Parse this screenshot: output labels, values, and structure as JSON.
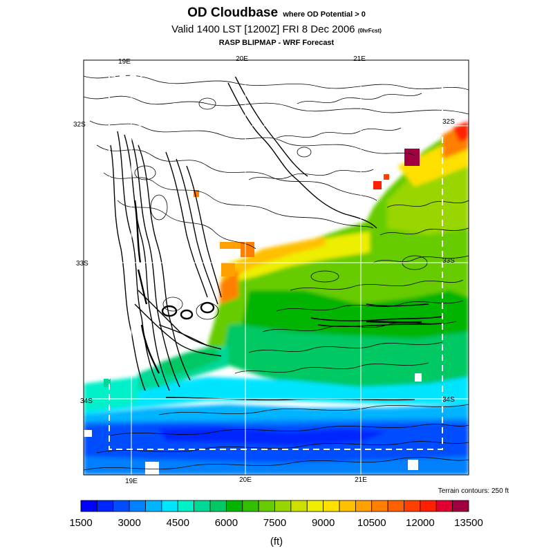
{
  "title": {
    "main": "OD Cloudbase",
    "qualifier": "where OD Potential > 0",
    "valid": "Valid 1400 LST [1200Z] FRI 8 Dec 2006",
    "forecast_tag": "(0hrFcst)",
    "model": "RASP BLIPMAP - WRF Forecast"
  },
  "map": {
    "lon_labels": [
      "19E",
      "20E",
      "21E"
    ],
    "lat_labels": [
      "32S",
      "33S",
      "34S"
    ],
    "terrain_note": "Terrain contours: 250 ft",
    "legend_position": "bottom"
  },
  "colorbar": {
    "ticks": [
      "1500",
      "3000",
      "4500",
      "6000",
      "7500",
      "9000",
      "10500",
      "12000",
      "13500"
    ],
    "units": "(ft)",
    "colors": [
      "#0000ff",
      "#0026ff",
      "#004dff",
      "#0080ff",
      "#00b4ff",
      "#00e5ff",
      "#00f0c8",
      "#00d896",
      "#00c864",
      "#00b400",
      "#33c000",
      "#66cc00",
      "#99d600",
      "#cce000",
      "#eeee00",
      "#ffe000",
      "#ffc000",
      "#ffa000",
      "#ff8000",
      "#ff6000",
      "#ff4000",
      "#ff2000",
      "#e00030",
      "#a00040"
    ]
  }
}
